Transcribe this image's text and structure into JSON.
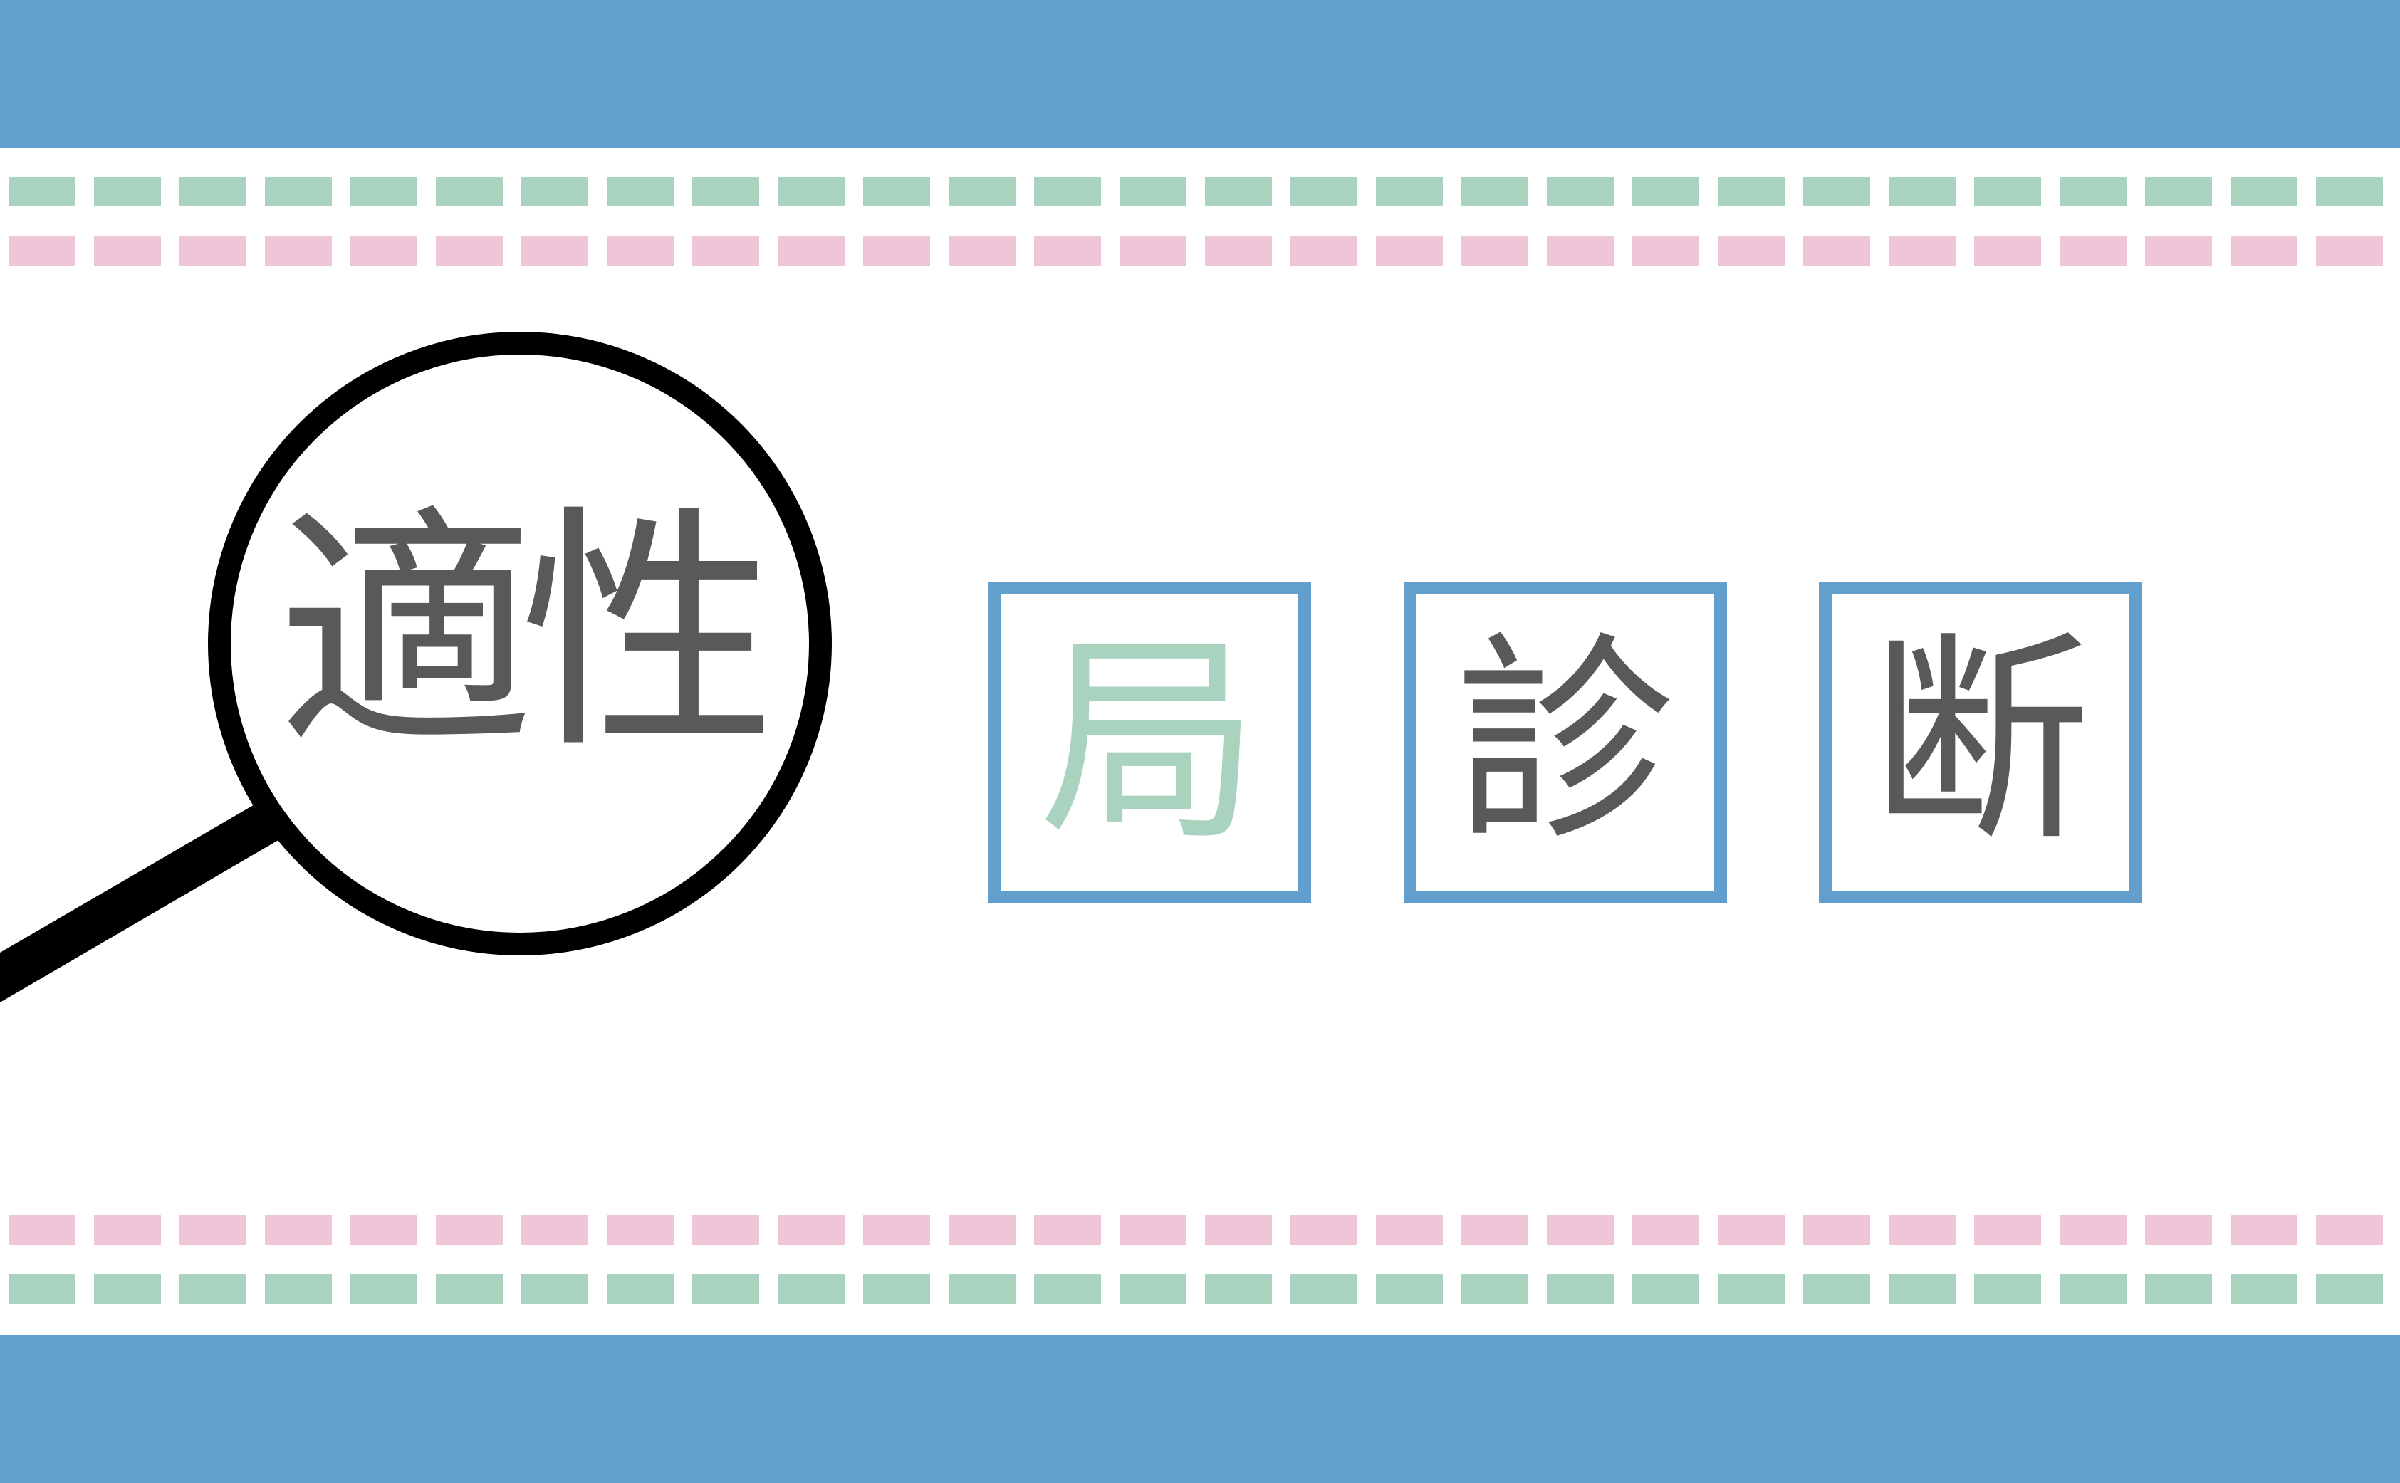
{
  "colors": {
    "band": "#639fcd",
    "dash_green": "#a9d2bf",
    "dash_pink": "#efc6d8",
    "text_dark": "#595959",
    "text_green": "#a9d2bf",
    "lens_ring": "#000000"
  },
  "magnifier": {
    "icon": "magnifying-glass-icon",
    "text": "適性"
  },
  "boxes": [
    {
      "char": "局",
      "color": "#a9d2bf"
    },
    {
      "char": "診",
      "color": "#595959"
    },
    {
      "char": "断",
      "color": "#595959"
    }
  ]
}
